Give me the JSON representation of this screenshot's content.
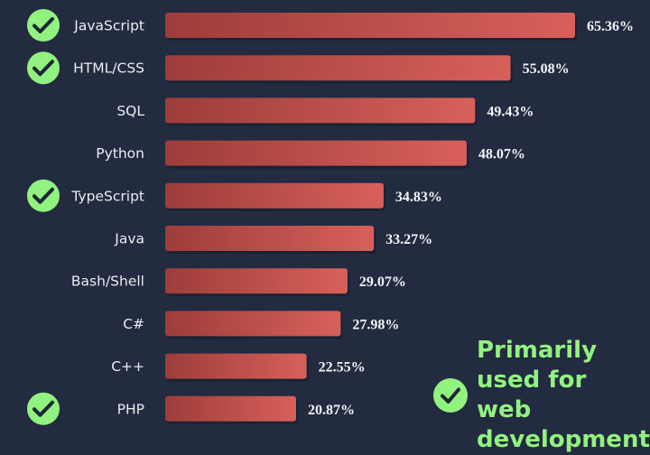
{
  "chart_data": {
    "type": "bar",
    "orientation": "horizontal",
    "categories": [
      "JavaScript",
      "HTML/CSS",
      "SQL",
      "Python",
      "TypeScript",
      "Java",
      "Bash/Shell",
      "C#",
      "C++",
      "PHP"
    ],
    "values": [
      65.36,
      55.08,
      49.43,
      48.07,
      34.83,
      33.27,
      29.07,
      27.98,
      22.55,
      20.87
    ],
    "value_labels": [
      "65.36%",
      "55.08%",
      "49.43%",
      "48.07%",
      "34.83%",
      "33.27%",
      "29.07%",
      "27.98%",
      "22.55%",
      "20.87%"
    ],
    "web_development": [
      true,
      true,
      false,
      false,
      true,
      false,
      false,
      false,
      false,
      true
    ],
    "xlim": [
      0,
      65.36
    ],
    "grid": false,
    "bar_color": "#c9524e",
    "check_color": "#92f27f"
  },
  "legend": {
    "text": "Primarily used for web development",
    "icon": "check-circle-icon"
  }
}
